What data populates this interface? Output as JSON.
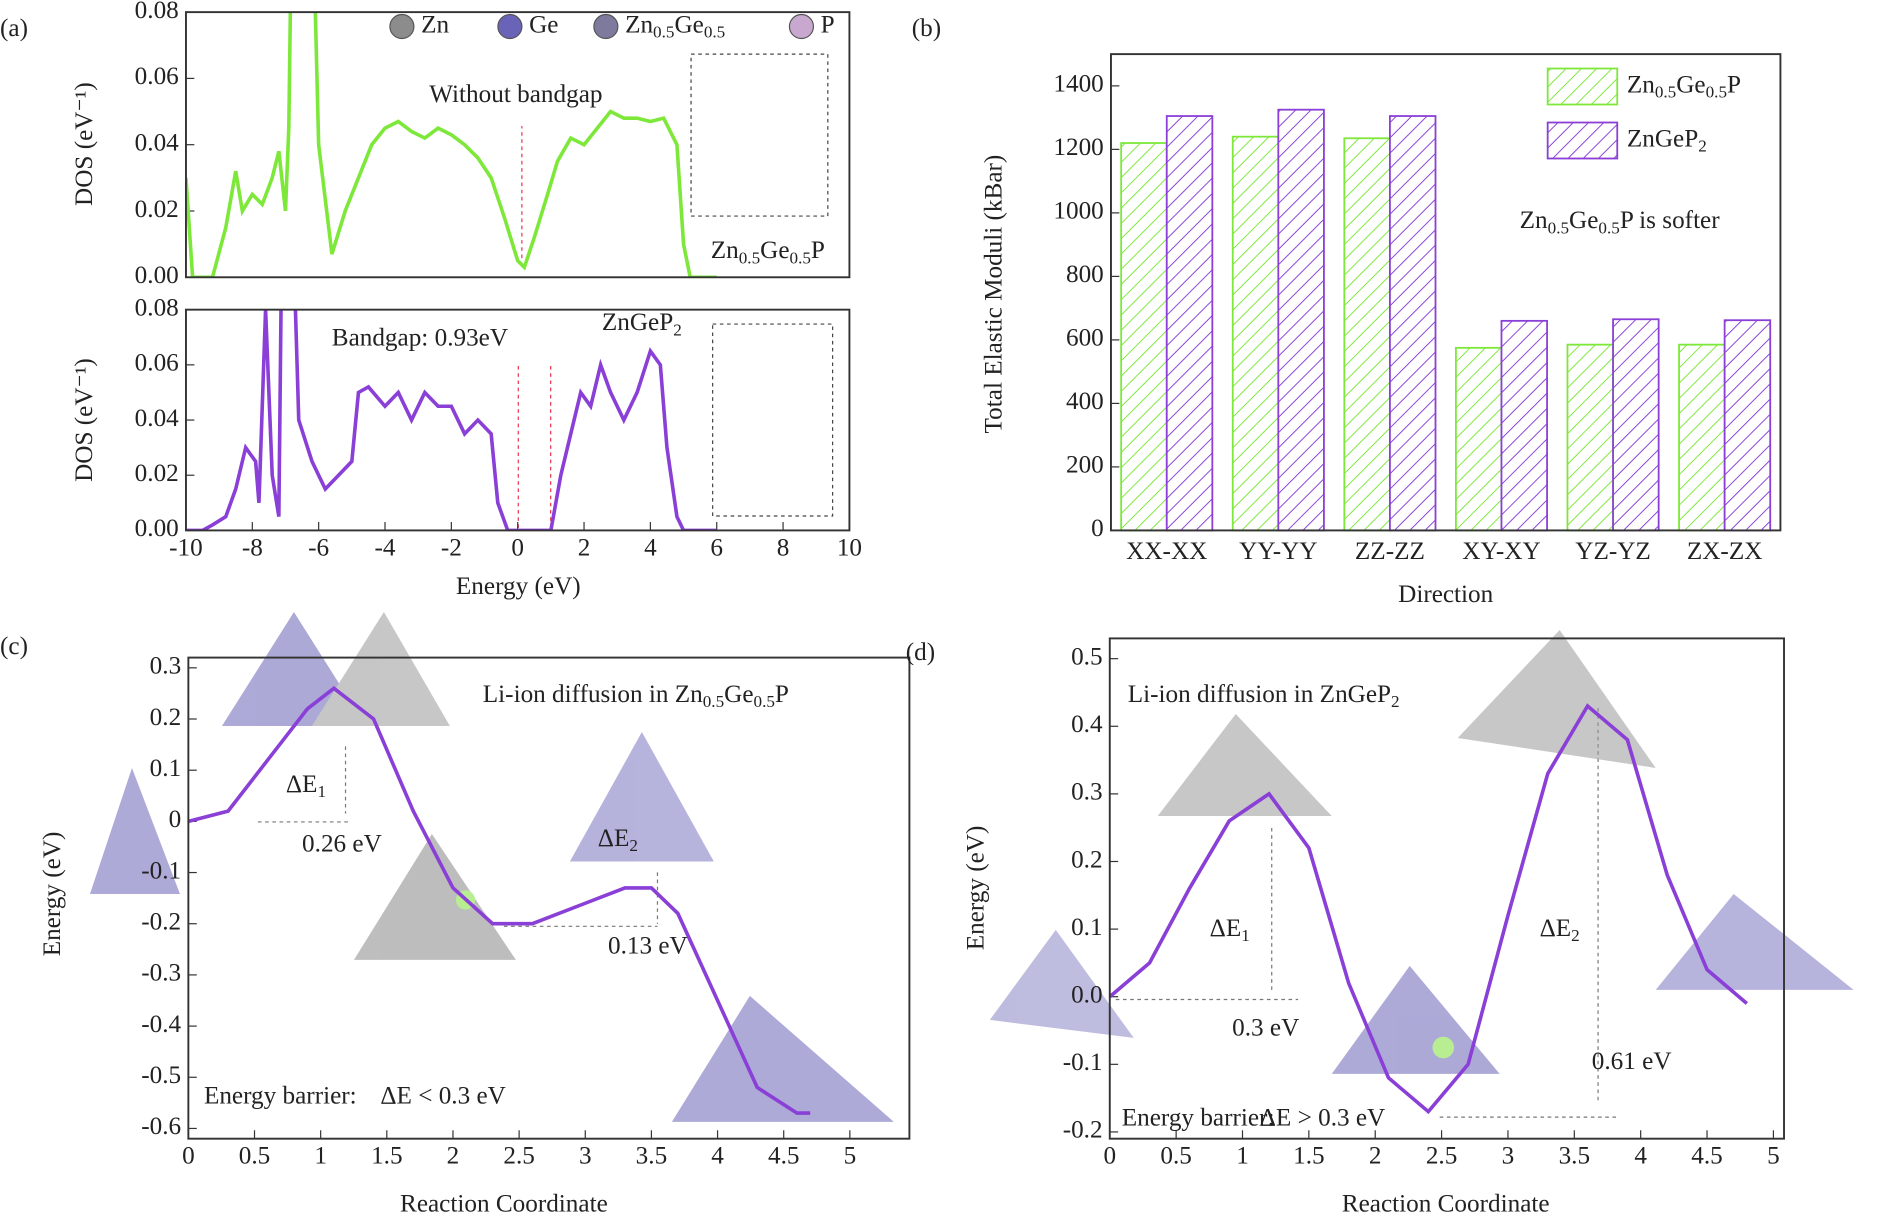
{
  "chart_data": [
    {
      "type": "line",
      "panel": "(a)",
      "ylabel": "DOS (eV⁻¹)",
      "legend": [
        {
          "name": "Zn",
          "color": "#8c8c8c"
        },
        {
          "name": "Ge",
          "color": "#6a64b8"
        },
        {
          "name": "Zn0.5Ge0.5",
          "color": "#7d7a9e"
        },
        {
          "name": "P",
          "color": "#c9a8cf"
        }
      ],
      "annotations": [
        "Without bandgap",
        "Zn0.5Ge0.5P"
      ],
      "xlim": [
        -10,
        10
      ],
      "ylim": [
        0,
        0.08
      ],
      "yticks": [
        {
          "value": 0,
          "label": "0.00"
        },
        {
          "value": 0.02,
          "label": "0.02"
        },
        {
          "value": 0.04,
          "label": "0.04"
        },
        {
          "value": 0.06,
          "label": "0.06"
        },
        {
          "value": 0.08,
          "label": "0.08"
        }
      ],
      "x": [
        -10,
        -9.8,
        -9.5,
        -9.2,
        -8.8,
        -8.5,
        -8.3,
        -8,
        -7.7,
        -7.4,
        -7.2,
        -7.0,
        -6.9,
        -6.8,
        -6.2,
        -6,
        -5.6,
        -5.2,
        -4.8,
        -4.4,
        -4,
        -3.6,
        -3.2,
        -2.8,
        -2.4,
        -2,
        -1.6,
        -1.2,
        -0.8,
        -0.4,
        0,
        0.2,
        0.5,
        0.9,
        1.2,
        1.6,
        2,
        2.4,
        2.8,
        3.2,
        3.6,
        4,
        4.4,
        4.8,
        5,
        5.2,
        5.6,
        6
      ],
      "series": [
        {
          "name": "Zn0.5Ge0.5P",
          "color": "#7de83a",
          "values": [
            0.03,
            0.0,
            0,
            0,
            0.015,
            0.032,
            0.02,
            0.025,
            0.022,
            0.03,
            0.038,
            0.02,
            0.045,
            0.12,
            0.12,
            0.04,
            0.007,
            0.02,
            0.03,
            0.04,
            0.045,
            0.047,
            0.044,
            0.042,
            0.045,
            0.043,
            0.04,
            0.036,
            0.03,
            0.018,
            0.005,
            0.003,
            0.012,
            0.025,
            0.035,
            0.042,
            0.04,
            0.045,
            0.05,
            0.048,
            0.048,
            0.047,
            0.048,
            0.04,
            0.01,
            0,
            0,
            0
          ]
        }
      ]
    },
    {
      "type": "line",
      "xlabel": "Energy (eV)",
      "ylabel": "DOS (eV⁻¹)",
      "annotations": [
        "Bandgap: 0.93eV",
        "ZnGeP2"
      ],
      "xlim": [
        -10,
        10
      ],
      "ylim": [
        0,
        0.08
      ],
      "xticks": [
        -10,
        -8,
        -6,
        -4,
        -2,
        0,
        2,
        4,
        6,
        8,
        10
      ],
      "yticks": [
        {
          "value": 0,
          "label": "0.00"
        },
        {
          "value": 0.02,
          "label": "0.02"
        },
        {
          "value": 0.04,
          "label": "0.04"
        },
        {
          "value": 0.06,
          "label": "0.06"
        },
        {
          "value": 0.08,
          "label": "0.08"
        }
      ],
      "x": [
        -10,
        -9.5,
        -9.2,
        -8.8,
        -8.5,
        -8.2,
        -7.9,
        -7.8,
        -7.6,
        -7.4,
        -7.2,
        -7.1,
        -6.8,
        -6.6,
        -6.2,
        -5.8,
        -5.4,
        -5,
        -4.8,
        -4.5,
        -4,
        -3.6,
        -3.2,
        -2.8,
        -2.4,
        -2,
        -1.6,
        -1.2,
        -0.8,
        -0.6,
        -0.3,
        0,
        0.5,
        1,
        1.3,
        1.6,
        1.9,
        2.2,
        2.5,
        2.8,
        3.2,
        3.6,
        4,
        4.3,
        4.5,
        4.8,
        5,
        6
      ],
      "series": [
        {
          "name": "ZnGeP2",
          "color": "#8a3fd6",
          "values": [
            0,
            0,
            0.002,
            0.005,
            0.015,
            0.03,
            0.025,
            0.01,
            0.08,
            0.02,
            0.005,
            0.12,
            0.12,
            0.04,
            0.025,
            0.015,
            0.02,
            0.025,
            0.05,
            0.052,
            0.045,
            0.05,
            0.04,
            0.05,
            0.045,
            0.045,
            0.035,
            0.04,
            0.035,
            0.01,
            0,
            0,
            0,
            0,
            0.02,
            0.035,
            0.05,
            0.045,
            0.06,
            0.05,
            0.04,
            0.05,
            0.065,
            0.06,
            0.03,
            0.005,
            0,
            0
          ]
        }
      ]
    },
    {
      "type": "bar",
      "panel": "(b)",
      "xlabel": "Direction",
      "ylabel": "Total Elastic Moduli (kBar)",
      "annotations": [
        "Zn0.5Ge0.5P is softer"
      ],
      "categories": [
        "XX-XX",
        "YY-YY",
        "ZZ-ZZ",
        "XY-XY",
        "YZ-YZ",
        "ZX-ZX"
      ],
      "ylim": [
        0,
        1500
      ],
      "yticks": [
        0,
        200,
        400,
        600,
        800,
        1000,
        1200,
        1400
      ],
      "series": [
        {
          "name": "Zn0.5Ge0.5P",
          "color": "#7de83a",
          "values": [
            1220,
            1240,
            1235,
            575,
            585,
            585
          ]
        },
        {
          "name": "ZnGeP2",
          "color": "#8a3fd6",
          "values": [
            1305,
            1325,
            1305,
            660,
            665,
            662
          ]
        }
      ]
    },
    {
      "type": "line",
      "panel": "(c)",
      "xlabel": "Reaction Coordinate",
      "ylabel": "Energy (eV)",
      "annotations": [
        "Li-ion diffusion in Zn0.5Ge0.5P",
        "ΔE1",
        "0.26 eV",
        "ΔE2",
        "0.13 eV",
        "Energy barrier:",
        "ΔE < 0.3 eV"
      ],
      "xlim": [
        0,
        5.45
      ],
      "ylim": [
        -0.62,
        0.32
      ],
      "xticks": [
        0,
        0.5,
        1,
        1.5,
        2,
        2.5,
        3,
        3.5,
        4,
        4.5,
        5
      ],
      "yticks": [
        -0.6,
        -0.5,
        -0.4,
        -0.3,
        -0.2,
        -0.1,
        0,
        0.1,
        0.2,
        0.3
      ],
      "x": [
        0,
        0.3,
        0.6,
        0.9,
        1.1,
        1.4,
        1.7,
        2.0,
        2.3,
        2.6,
        3.0,
        3.3,
        3.5,
        3.7,
        4.0,
        4.3,
        4.6,
        4.7
      ],
      "series": [
        {
          "name": "Zn0.5Ge0.5P",
          "color": "#8a3fd6",
          "values": [
            0,
            0.02,
            0.12,
            0.22,
            0.26,
            0.2,
            0.02,
            -0.13,
            -0.2,
            -0.2,
            -0.16,
            -0.13,
            -0.13,
            -0.18,
            -0.35,
            -0.52,
            -0.57,
            -0.57
          ]
        }
      ]
    },
    {
      "type": "line",
      "panel": "(d)",
      "xlabel": "Reaction Coordinate",
      "ylabel": "Energy (eV)",
      "annotations": [
        "Li-ion diffusion in ZnGeP2",
        "ΔE1",
        "0.3 eV",
        "ΔE2",
        "0.61 eV",
        "Energy barrier: ",
        "ΔE > 0.3 eV"
      ],
      "xlim": [
        0,
        5.08
      ],
      "ylim": [
        -0.21,
        0.53
      ],
      "xticks": [
        0,
        0.5,
        1,
        1.5,
        2,
        2.5,
        3,
        3.5,
        4,
        4.5,
        5
      ],
      "yticks": [
        -0.2,
        -0.1,
        {
          "value": 0,
          "label": "0.0"
        },
        0.1,
        0.2,
        0.3,
        0.4,
        0.5
      ],
      "x": [
        0,
        0.3,
        0.6,
        0.9,
        1.2,
        1.5,
        1.8,
        2.1,
        2.4,
        2.7,
        3.0,
        3.3,
        3.6,
        3.9,
        4.2,
        4.5,
        4.8
      ],
      "series": [
        {
          "name": "ZnGeP2",
          "color": "#8a3fd6",
          "values": [
            0,
            0.05,
            0.16,
            0.26,
            0.3,
            0.22,
            0.02,
            -0.12,
            -0.17,
            -0.1,
            0.12,
            0.33,
            0.43,
            0.38,
            0.18,
            0.04,
            -0.01
          ]
        }
      ]
    }
  ]
}
